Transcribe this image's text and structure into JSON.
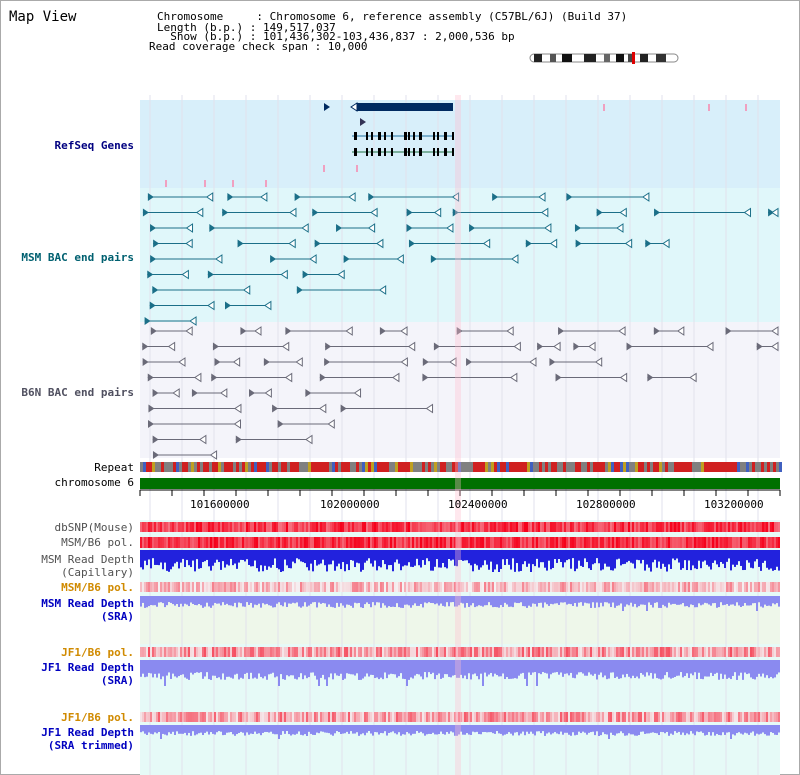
{
  "header": {
    "title": "Map View",
    "chromosome_line": "Chromosome     : Chromosome 6, reference assembly (C57BL/6J) (Build 37)",
    "length_line": "Length (b.p.) : 149,517,037",
    "show_line": "  Show (b.p.) : 101,436,302-103,436,837 : 2,000,536 bp",
    "span_line": "Read coverage check span : 10,000"
  },
  "tracks": [
    {
      "label": "RefSeq Genes",
      "color": "#000080"
    },
    {
      "label": "MSM BAC end pairs",
      "color": "#006070"
    },
    {
      "label": "B6N BAC end pairs",
      "color": "#505060"
    },
    {
      "label": "Repeat",
      "color": "#000000"
    },
    {
      "label": "chromosome 6",
      "color": "#000000"
    },
    {
      "label": "dbSNP(Mouse)",
      "color": "#505050"
    },
    {
      "label": "MSM/B6 pol.",
      "color": "#505050"
    },
    {
      "label": "MSM Read Depth",
      "sub": "(Capillary)",
      "color": "#505050"
    },
    {
      "label": "MSM/B6 pol.",
      "color": "#d08a00"
    },
    {
      "label": "MSM Read Depth",
      "sub": "(SRA)",
      "color": "#0000c0"
    },
    {
      "label": "JF1/B6 pol.",
      "color": "#d08a00"
    },
    {
      "label": "JF1 Read Depth",
      "sub": "(SRA)",
      "color": "#0000c0"
    },
    {
      "label": "JF1/B6 pol.",
      "color": "#d08a00"
    },
    {
      "label": "JF1 Read Depth",
      "sub": "(SRA trimmed)",
      "color": "#0000c0"
    }
  ],
  "axis": {
    "ticks": [
      "101600000",
      "102000000",
      "102400000",
      "102800000",
      "103200000"
    ]
  },
  "colors": {
    "refseq_bg": "#d8effa",
    "msm_bac_bg": "#e0f7fa",
    "b6n_bg": "#f4f4fa",
    "chromosome_bar": "#007000",
    "gene_box": "#002a60",
    "depth_capillary": "#2222dd",
    "depth_sra": "#8a8af0",
    "pol_red": "#ee4444"
  }
}
